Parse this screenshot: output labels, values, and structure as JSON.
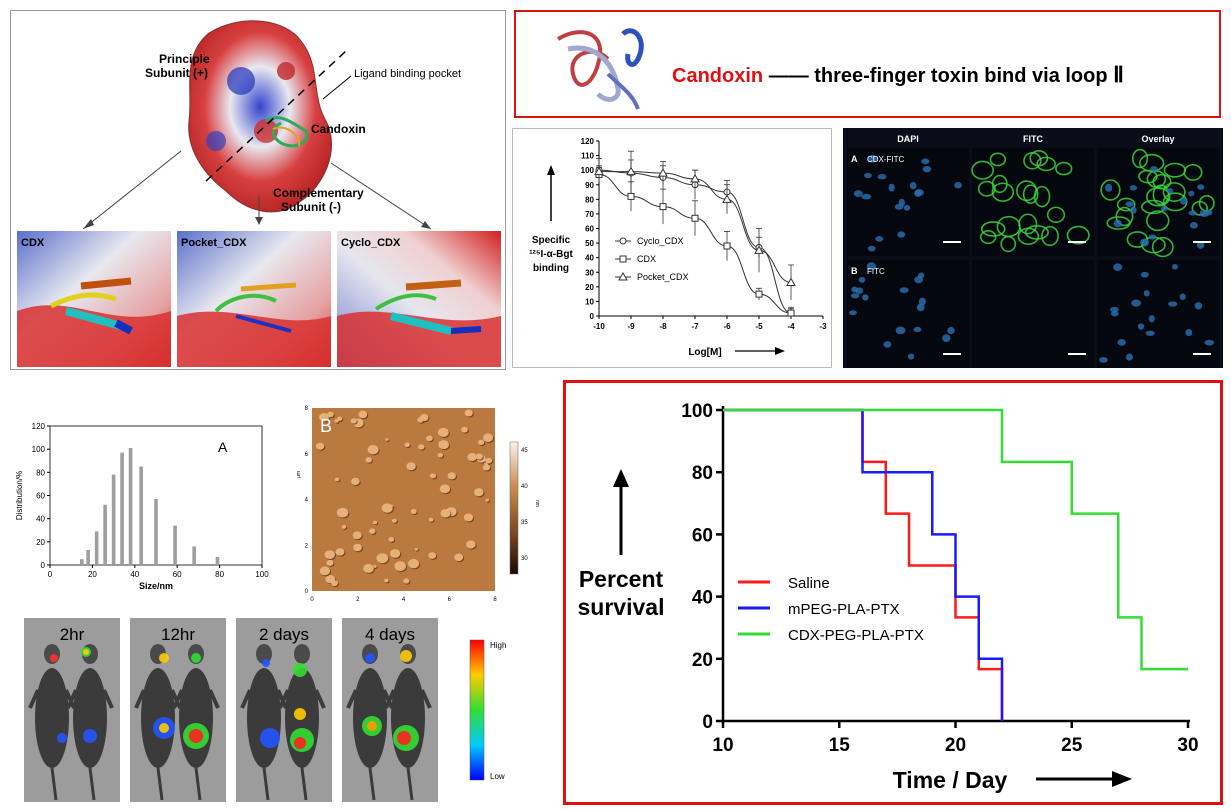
{
  "docking_panel": {
    "labels": {
      "principle": "Principle",
      "principle2": "Subunit (+)",
      "pocket": "Ligand binding pocket",
      "candoxin": "Candoxin",
      "complementary": "Complementary",
      "complementary2": "Subunit (-)"
    },
    "subpanels": [
      "CDX",
      "Pocket_CDX",
      "Cyclo_CDX"
    ]
  },
  "title_box": {
    "highlight": "Candoxin",
    "rest": "—— three-finger toxin bind via loop",
    "numeral": "Ⅱ"
  },
  "microscopy": {
    "columns": [
      "DAPI",
      "FITC",
      "Overlay"
    ],
    "rows": [
      {
        "letter": "A",
        "label": "CDX-FITC"
      },
      {
        "letter": "B",
        "label": "FITC"
      }
    ]
  },
  "binding_chart": {
    "ylabel_lines": [
      "Specific",
      "¹²⁵I-α-Bgt",
      "binding"
    ],
    "xlabel": "Log[M]",
    "xticks": [
      "-10",
      "-9",
      "-8",
      "-7",
      "-6",
      "-5",
      "-4",
      "-3"
    ],
    "yticks": [
      "0",
      "10",
      "20",
      "30",
      "40",
      "50",
      "60",
      "70",
      "80",
      "90",
      "100",
      "110",
      "120"
    ],
    "legend": [
      "Cyclo_CDX",
      "CDX",
      "Pocket_CDX"
    ]
  },
  "size_chart": {
    "panel_letter": "A",
    "ylabel": "Distribution/%",
    "xlabel": "Size/nm",
    "xticks": [
      "0",
      "20",
      "40",
      "60",
      "80",
      "100"
    ],
    "yticks": [
      "0",
      "20",
      "40",
      "60",
      "80",
      "100",
      "120"
    ]
  },
  "afm": {
    "panel_letter": "B",
    "yunit": "μm",
    "cbar_unit": "nm",
    "cbar_ticks": [
      "45",
      "40",
      "35",
      "30"
    ],
    "xticks": [
      "0",
      "2",
      "4",
      "6",
      "8"
    ],
    "yticks": [
      "0",
      "2",
      "4",
      "6",
      "8"
    ]
  },
  "imaging": {
    "timepoints": [
      "2hr",
      "12hr",
      "2 days",
      "4 days"
    ],
    "scale_high": "High",
    "scale_low": "Low"
  },
  "survival_chart": {
    "ylabel_lines": [
      "Percent",
      "survival"
    ],
    "xlabel": "Time / Day",
    "xticks": [
      "10",
      "15",
      "20",
      "25",
      "30"
    ],
    "yticks": [
      "0",
      "20",
      "40",
      "60",
      "80",
      "100"
    ]
  },
  "chart_data": [
    {
      "type": "line",
      "id": "binding",
      "xlabel": "Log[M]",
      "ylabel": "Specific 125I-α-Bgt binding",
      "xlim": [
        -10,
        -3
      ],
      "ylim": [
        0,
        120
      ],
      "series": [
        {
          "name": "Cyclo_CDX",
          "marker": "circle",
          "x": [
            -10,
            -9,
            -8,
            -7,
            -6,
            -5,
            -4
          ],
          "y": [
            100,
            98,
            95,
            90,
            85,
            47,
            2
          ],
          "err": [
            8,
            15,
            8,
            10,
            8,
            7,
            4
          ]
        },
        {
          "name": "CDX",
          "marker": "square",
          "x": [
            -10,
            -9,
            -8,
            -7,
            -6,
            -5,
            -4
          ],
          "y": [
            97,
            82,
            75,
            67,
            48,
            15,
            2
          ],
          "err": [
            5,
            10,
            12,
            12,
            10,
            4,
            3
          ]
        },
        {
          "name": "Pocket_CDX",
          "marker": "triangle",
          "x": [
            -10,
            -9,
            -8,
            -7,
            -6,
            -5,
            -4
          ],
          "y": [
            99,
            99,
            98,
            94,
            80,
            45,
            23
          ],
          "err": [
            4,
            8,
            8,
            6,
            10,
            15,
            12
          ]
        }
      ]
    },
    {
      "type": "bar",
      "id": "size",
      "xlabel": "Size/nm",
      "ylabel": "Distribution/%",
      "xlim": [
        0,
        100
      ],
      "ylim": [
        0,
        120
      ],
      "x": [
        15,
        18,
        22,
        26,
        30,
        34,
        38,
        43,
        50,
        59,
        68,
        79
      ],
      "values": [
        5,
        13,
        29,
        52,
        78,
        97,
        101,
        85,
        57,
        34,
        16,
        7
      ]
    },
    {
      "type": "line",
      "id": "survival",
      "step": true,
      "xlabel": "Time / Day",
      "ylabel": "Percent survival",
      "xlim": [
        10,
        30
      ],
      "ylim": [
        0,
        100
      ],
      "series": [
        {
          "name": "Saline",
          "color": "#ff1a1a",
          "x": [
            10,
            16,
            17,
            18,
            20,
            21,
            22
          ],
          "y": [
            100,
            83.3,
            66.7,
            50,
            33.3,
            16.7,
            0
          ]
        },
        {
          "name": "mPEG-PLA-PTX",
          "color": "#1a1aff",
          "x": [
            10,
            16,
            19,
            20,
            21,
            22
          ],
          "y": [
            100,
            80,
            60,
            40,
            20,
            0
          ]
        },
        {
          "name": "CDX-PEG-PLA-PTX",
          "color": "#33dd33",
          "x": [
            10,
            22,
            25,
            27,
            28,
            30
          ],
          "y": [
            100,
            83.3,
            66.7,
            33.3,
            16.7,
            16.7
          ]
        }
      ]
    }
  ]
}
